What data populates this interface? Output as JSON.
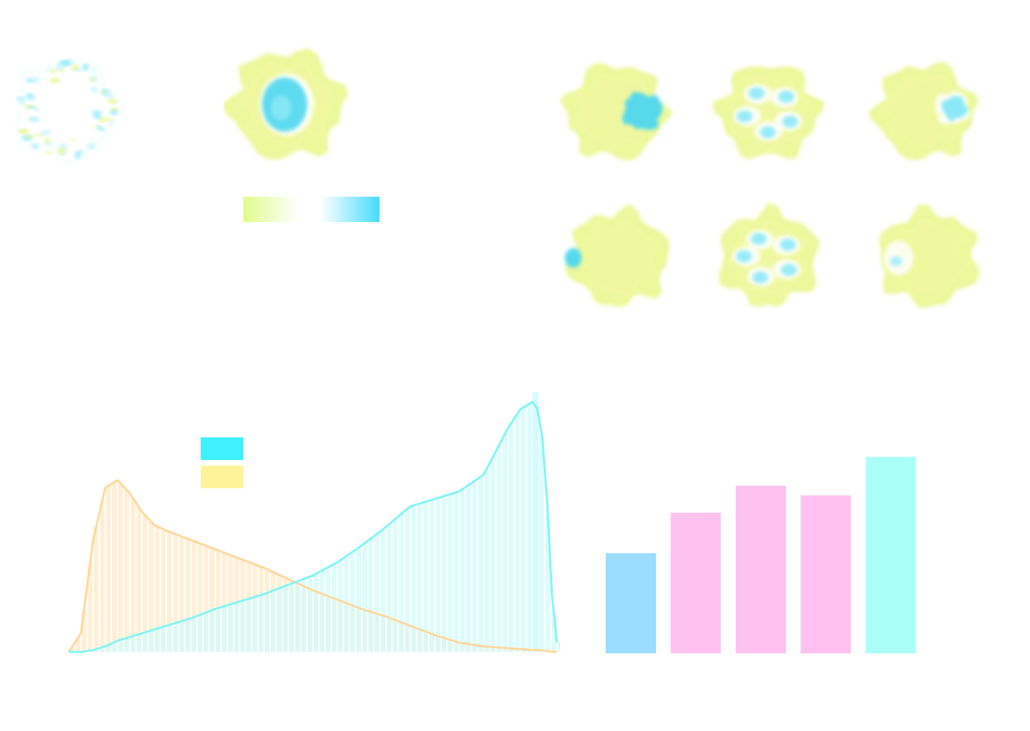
{
  "colors": {
    "yellow": "#e8f78a",
    "yellow_light": "#f6fbc9",
    "cyan": "#4fd8f0",
    "cyan_light": "#c9f3fb",
    "orange_line": "#ffd79a",
    "orange_fill": "#fde9c8",
    "cyan_line": "#7ff5f5",
    "cyan_fill": "#d2fbfb",
    "legend_cyan": "#40f0ff",
    "legend_yellow": "#fff39a",
    "bar_blue": "#9bdcff",
    "bar_pink": "#ffc1ef",
    "bar_cyan": "#aafff8"
  },
  "surfaces": {
    "maps": [
      {
        "name": "surface-map-sparse",
        "cyan_share": 0.35,
        "pattern": "speckled"
      },
      {
        "name": "surface-map-pocket",
        "cyan_share": 0.45,
        "pattern": "central-pocket"
      },
      {
        "name": "surface-map-grid-1",
        "cyan_share": 0.25,
        "pattern": "right-lobe"
      },
      {
        "name": "surface-map-grid-2",
        "cyan_share": 0.3,
        "pattern": "mixed"
      },
      {
        "name": "surface-map-grid-3",
        "cyan_share": 0.15,
        "pattern": "right-lobe-faint"
      },
      {
        "name": "surface-map-grid-4",
        "cyan_share": 0.06,
        "pattern": "left-edge"
      },
      {
        "name": "surface-map-grid-5",
        "cyan_share": 0.25,
        "pattern": "mixed"
      },
      {
        "name": "surface-map-grid-6",
        "cyan_share": 0.08,
        "pattern": "left-faint"
      }
    ],
    "colorbar": {
      "left_color": "#e8f78a",
      "right_color": "#4fd8f0"
    }
  },
  "chart_data": [
    {
      "type": "area",
      "title": "",
      "xlabel": "",
      "ylabel": "",
      "legend": {
        "placement": "top-left",
        "entries": [
          {
            "color": "#40f0ff"
          },
          {
            "color": "#fff39a"
          }
        ]
      },
      "x": [
        0.0,
        0.025,
        0.05,
        0.075,
        0.1,
        0.125,
        0.15,
        0.175,
        0.2,
        0.25,
        0.3,
        0.35,
        0.4,
        0.45,
        0.5,
        0.55,
        0.6,
        0.65,
        0.7,
        0.75,
        0.8,
        0.85,
        0.9,
        0.925,
        0.95,
        0.96,
        0.97,
        0.98,
        0.99,
        1.0
      ],
      "series": [
        {
          "values": [
            0.0,
            0.1,
            0.6,
            0.88,
            0.92,
            0.85,
            0.75,
            0.68,
            0.65,
            0.6,
            0.55,
            0.5,
            0.45,
            0.39,
            0.33,
            0.28,
            0.23,
            0.19,
            0.14,
            0.09,
            0.05,
            0.03,
            0.02,
            0.015,
            0.01,
            0.01,
            0.008,
            0.005,
            0.002,
            0.0
          ],
          "style": "orange"
        },
        {
          "values": [
            0.0,
            0.0,
            0.01,
            0.03,
            0.06,
            0.08,
            0.1,
            0.12,
            0.14,
            0.18,
            0.23,
            0.27,
            0.31,
            0.36,
            0.41,
            0.48,
            0.57,
            0.67,
            0.78,
            0.82,
            0.86,
            0.95,
            1.2,
            1.3,
            1.34,
            1.3,
            1.15,
            0.8,
            0.3,
            0.05
          ],
          "style": "cyan"
        }
      ],
      "ylim": [
        0,
        1.4
      ]
    },
    {
      "type": "bar",
      "title": "",
      "categories": [
        "",
        "",
        "",
        "",
        ""
      ],
      "values": [
        0.52,
        0.73,
        0.87,
        0.82,
        1.02
      ],
      "bar_colors": [
        "#9bdcff",
        "#ffc1ef",
        "#ffc1ef",
        "#ffc1ef",
        "#aafff8"
      ],
      "ylim": [
        0,
        1.1
      ]
    }
  ]
}
